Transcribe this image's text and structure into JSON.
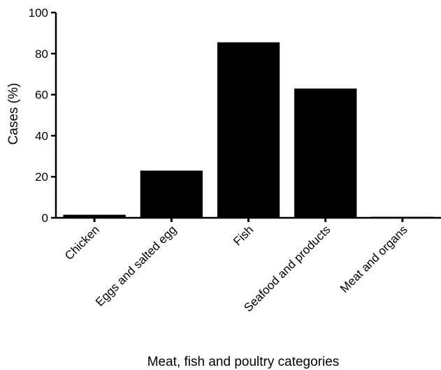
{
  "chart_data": {
    "type": "bar",
    "categories": [
      "Chicken",
      "Eggs and salted egg",
      "Fish",
      "Seafood and products",
      "Meat and organs"
    ],
    "values": [
      1.5,
      23,
      85.5,
      63,
      0.5
    ],
    "xlabel": "Meat, fish and poultry categories",
    "ylabel": "Cases (%)",
    "ylim": [
      0,
      100
    ],
    "yticks": [
      0,
      20,
      40,
      60,
      80,
      100
    ],
    "bar_color": "#000000",
    "grid": false,
    "legend": "none"
  }
}
